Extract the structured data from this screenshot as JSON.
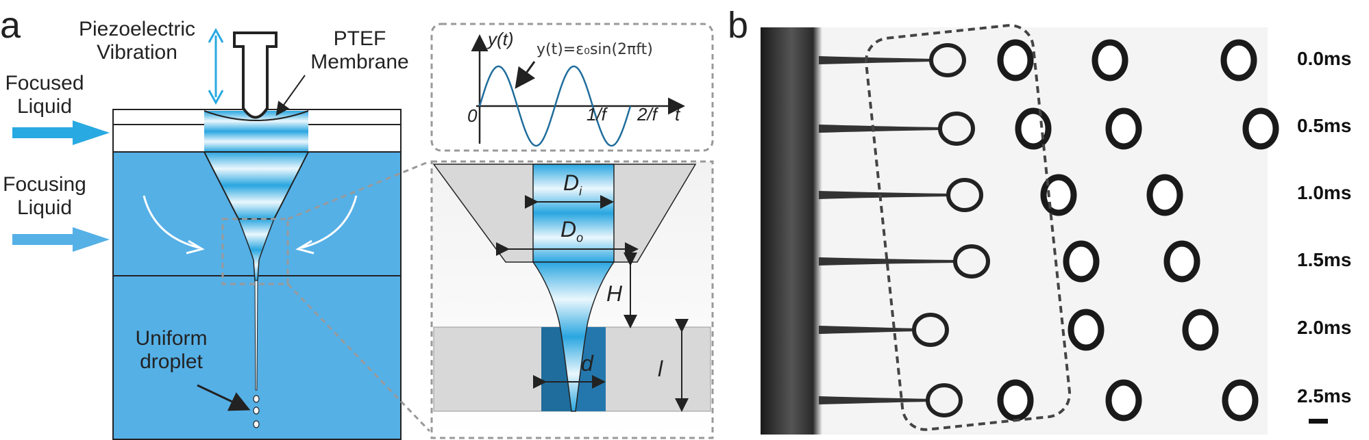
{
  "panel_a": {
    "letter": "a",
    "labels": {
      "piezo_line1": "Piezoelectric",
      "piezo_line2": "Vibration",
      "ptef_line1": "PTEF",
      "ptef_line2": "Membrane",
      "focused_line1": "Focused",
      "focused_line2": "Liquid",
      "focusing_line1": "Focusing",
      "focusing_line2": "Liquid",
      "uniform_line1": "Uniform",
      "uniform_line2": "droplet"
    },
    "inset_plot": {
      "ylabel": "y(t)",
      "equation": "y(t)=ε₀sin(2πft)",
      "origin": "0",
      "tick1": "1/f",
      "tick2": "2/f",
      "xlabel": "t"
    },
    "zoom": {
      "Di": "D",
      "Di_sub": "i",
      "Do": "D",
      "Do_sub": "o",
      "H": "H",
      "d": "d",
      "l": "l"
    },
    "colors": {
      "liquid_blue": "#55b0e6",
      "arrow_blue": "#29a9e1",
      "dark_blue": "#1f6d9c",
      "gray": "#d8d8d8"
    }
  },
  "panel_b": {
    "letter": "b",
    "times": [
      "0.0ms",
      "0.5ms",
      "1.0ms",
      "1.5ms",
      "2.0ms",
      "2.5ms"
    ]
  }
}
